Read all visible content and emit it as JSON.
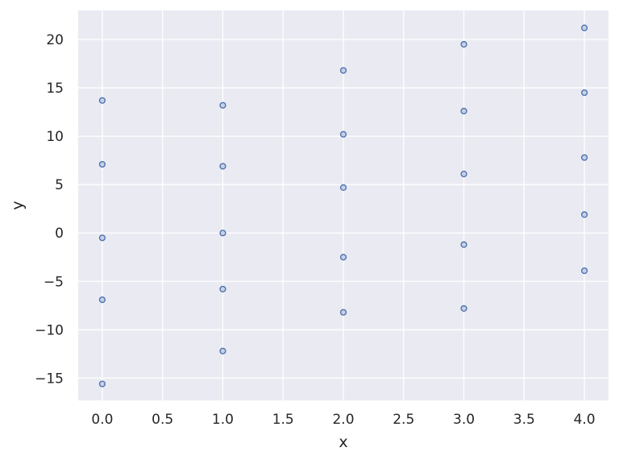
{
  "chart_data": {
    "type": "scatter",
    "title": "",
    "xlabel": "x",
    "ylabel": "y",
    "xlim": [
      -0.2,
      4.2
    ],
    "ylim": [
      -17.3,
      23
    ],
    "grid": true,
    "x_ticks": [
      "0.0",
      "0.5",
      "1.0",
      "1.5",
      "2.0",
      "2.5",
      "3.0",
      "3.5",
      "4.0"
    ],
    "y_ticks": [
      "−15",
      "−10",
      "−5",
      "0",
      "5",
      "10",
      "15",
      "20"
    ],
    "x_tick_values": [
      0,
      0.5,
      1,
      1.5,
      2,
      2.5,
      3,
      3.5,
      4
    ],
    "y_tick_values": [
      -15,
      -10,
      -5,
      0,
      5,
      10,
      15,
      20
    ],
    "points": [
      {
        "x": 0,
        "y": 13.7
      },
      {
        "x": 0,
        "y": 7.1
      },
      {
        "x": 0,
        "y": -0.5
      },
      {
        "x": 0,
        "y": -6.9
      },
      {
        "x": 0,
        "y": -15.6
      },
      {
        "x": 1,
        "y": 13.2
      },
      {
        "x": 1,
        "y": 6.9
      },
      {
        "x": 1,
        "y": 0.0
      },
      {
        "x": 1,
        "y": -5.8
      },
      {
        "x": 1,
        "y": -12.2
      },
      {
        "x": 2,
        "y": 16.8
      },
      {
        "x": 2,
        "y": 10.2
      },
      {
        "x": 2,
        "y": 4.7
      },
      {
        "x": 2,
        "y": -2.5
      },
      {
        "x": 2,
        "y": -8.2
      },
      {
        "x": 3,
        "y": 19.5
      },
      {
        "x": 3,
        "y": 12.6
      },
      {
        "x": 3,
        "y": 6.1
      },
      {
        "x": 3,
        "y": -1.2
      },
      {
        "x": 3,
        "y": -7.8
      },
      {
        "x": 4,
        "y": 21.2
      },
      {
        "x": 4,
        "y": 14.5
      },
      {
        "x": 4,
        "y": 7.8
      },
      {
        "x": 4,
        "y": 1.9
      },
      {
        "x": 4,
        "y": -3.9
      }
    ],
    "colors": {
      "marker_edge": "#4c72b0",
      "marker_fill": "#c9d1e6",
      "background": "#eaeaf2",
      "grid": "#ffffff"
    }
  }
}
